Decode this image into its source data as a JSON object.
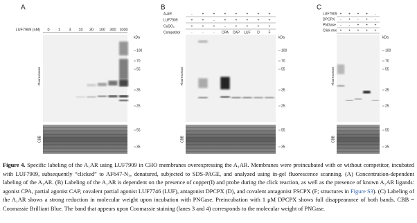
{
  "panels": [
    {
      "label": "A",
      "conc_title": "LUF7909 (nM)",
      "lanes": [
        "0",
        "1",
        "3",
        "10",
        "30",
        "100",
        "300",
        "1000"
      ],
      "kda": "kDa",
      "markers": [
        "100",
        "70",
        "55",
        "35",
        "25"
      ],
      "fluor_label": "Fluorescence",
      "cbb_label": "CBB",
      "cbb_markers": [
        "55",
        "35"
      ]
    },
    {
      "label": "B",
      "rows": [
        {
          "name": "A₁AR",
          "values": [
            "-",
            "+",
            "+",
            "+",
            "+",
            "+",
            "+",
            "+"
          ]
        },
        {
          "name": "LUF7909",
          "values": [
            "+",
            "+",
            "-",
            "+",
            "+",
            "+",
            "+",
            "+"
          ]
        },
        {
          "name": "CuSO₄",
          "values": [
            "+",
            "+",
            "+",
            "-",
            "+",
            "+",
            "+",
            "+"
          ]
        },
        {
          "name": "Competitor",
          "values": [
            "-",
            "-",
            "-",
            "CPA",
            "CAP",
            "LUF",
            "D",
            "F"
          ]
        }
      ],
      "kda": "kDa",
      "markers": [
        "100",
        "70",
        "55",
        "35",
        "25"
      ],
      "fluor_label": "Fluorescence",
      "cbb_label": "CBB",
      "cbb_markers": [
        "55",
        "35"
      ]
    },
    {
      "label": "C",
      "rows": [
        {
          "name": "LUF7909",
          "values": [
            "+",
            "+",
            "+",
            "+",
            "-"
          ]
        },
        {
          "name": "DPCPX",
          "values": [
            "-",
            "+",
            "-",
            "+",
            "-"
          ]
        },
        {
          "name": "PNGase",
          "values": [
            "-",
            "-",
            "+",
            "+",
            "+"
          ]
        },
        {
          "name": "Click mix",
          "values": [
            "+",
            "+",
            "+",
            "+",
            "+"
          ]
        }
      ],
      "kda": "kDa",
      "markers": [
        "100",
        "70",
        "55",
        "35",
        "25"
      ],
      "fluor_label": "Fluorescence",
      "cbb_label": "CBB",
      "cbb_markers": [
        "55",
        "35"
      ]
    }
  ],
  "caption": {
    "label": "Figure 4.",
    "text1": " Specific labeling of the A₁AR using LUF7909 in CHO membranes overexpressing the A₁AR. Membranes were preincubated with or without competitor, incubated with LUF7909, subsequently “clicked” to AF647-N₃, denatured, subjected to SDS-PAGE, and analyzed using in-gel fluorescence scanning. (A) Concentration-dependent labeling of the A₁AR. (B) Labeling of the A₁AR is dependent on the presence of copper(I) and probe during the click reaction, as well as the presence of known A₁AR ligands: agonist CPA, partial agonist CAP, covalent partial agonist LUF7746 (LUF), antagonist DPCPX (D), and covalent antagonist FSCPX (F; structures in ",
    "link": "Figure S3",
    "text2": "). (C) Labeling of the A₁AR shows a strong reduction in molecular weight upon incubation with PNGase. Preincubation with 1 μM DPCPX shows full disappearance of both bands. CBB = Coomassie Brilliant Blue. The band that appears upon Coomassie staining (lanes 3 and 4) corresponds to the molecular weight of PNGase."
  }
}
